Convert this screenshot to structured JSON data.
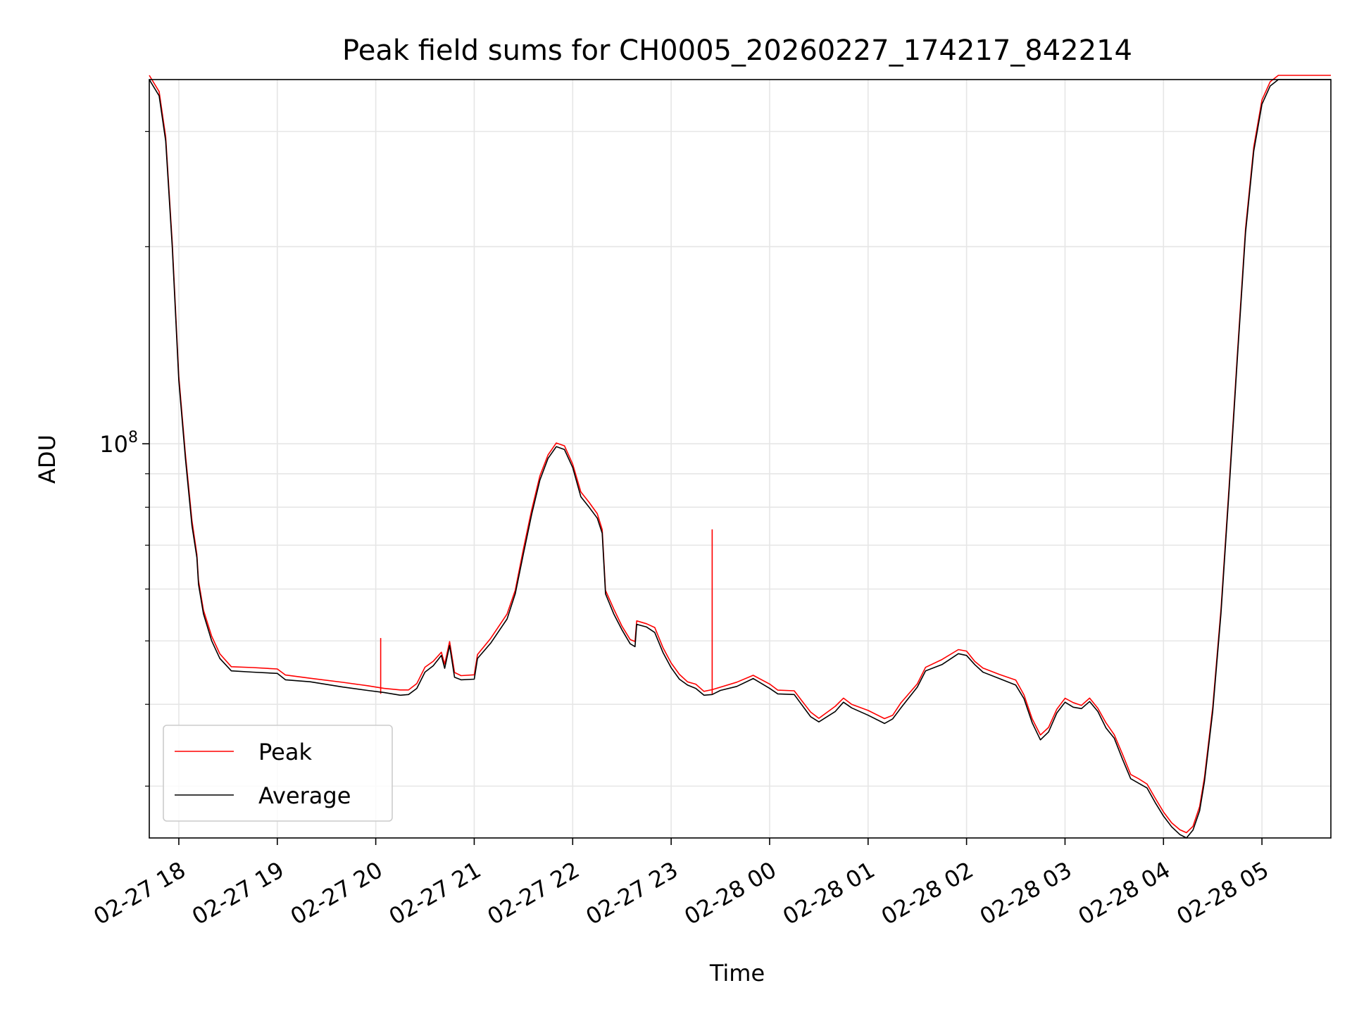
{
  "chart_data": {
    "type": "line",
    "title": "Peak field sums for CH0005_20260227_174217_842214",
    "xlabel": "Time",
    "ylabel": "ADU",
    "y_scale": "log",
    "grid": true,
    "grid_minor": true,
    "legend_position": "lower-left",
    "xlim": [
      "2026-02-27 17:42",
      "2026-02-28 05:42"
    ],
    "ylim": [
      25000000,
      360000000
    ],
    "x_tick_labels": [
      "02-27 18",
      "02-27 19",
      "02-27 20",
      "02-27 21",
      "02-27 22",
      "02-27 23",
      "02-28 00",
      "02-28 01",
      "02-28 02",
      "02-28 03",
      "02-28 04",
      "02-28 05"
    ],
    "x_ticks": [
      "2026-02-27 18:00",
      "2026-02-27 19:00",
      "2026-02-27 20:00",
      "2026-02-27 21:00",
      "2026-02-27 22:00",
      "2026-02-27 23:00",
      "2026-02-28 00:00",
      "2026-02-28 01:00",
      "2026-02-28 02:00",
      "2026-02-28 03:00",
      "2026-02-28 04:00",
      "2026-02-28 05:00"
    ],
    "y_major_tick": {
      "value": 100000000,
      "label_base": "10",
      "label_exp": "8"
    },
    "y_minor_ticks": [
      30000000,
      40000000,
      50000000,
      60000000,
      70000000,
      80000000,
      90000000,
      200000000,
      300000000
    ],
    "series": [
      {
        "name": "Peak",
        "color": "#ff0000",
        "spikes": [
          {
            "x": "2026-02-27 20:03",
            "y": 50500000
          },
          {
            "x": "2026-02-27 23:25",
            "y": 74000000
          }
        ]
      },
      {
        "name": "Average",
        "color": "#000000"
      }
    ],
    "average_points": [
      [
        "2026-02-27 17:42",
        360000000
      ],
      [
        "2026-02-27 17:48",
        340000000
      ],
      [
        "2026-02-27 17:52",
        290000000
      ],
      [
        "2026-02-27 17:56",
        200000000
      ],
      [
        "2026-02-27 18:00",
        125000000
      ],
      [
        "2026-02-27 18:04",
        95000000
      ],
      [
        "2026-02-27 18:08",
        75000000
      ],
      [
        "2026-02-27 18:11",
        67000000
      ],
      [
        "2026-02-27 18:12",
        61000000
      ],
      [
        "2026-02-27 18:15",
        55000000
      ],
      [
        "2026-02-27 18:20",
        50000000
      ],
      [
        "2026-02-27 18:25",
        47000000
      ],
      [
        "2026-02-27 18:32",
        45000000
      ],
      [
        "2026-02-27 18:45",
        44800000
      ],
      [
        "2026-02-27 19:00",
        44600000
      ],
      [
        "2026-02-27 19:05",
        43600000
      ],
      [
        "2026-02-27 19:20",
        43300000
      ],
      [
        "2026-02-27 19:40",
        42500000
      ],
      [
        "2026-02-27 19:55",
        42000000
      ],
      [
        "2026-02-27 20:05",
        41700000
      ],
      [
        "2026-02-27 20:15",
        41300000
      ],
      [
        "2026-02-27 20:20",
        41400000
      ],
      [
        "2026-02-27 20:25",
        42300000
      ],
      [
        "2026-02-27 20:30",
        44800000
      ],
      [
        "2026-02-27 20:35",
        45800000
      ],
      [
        "2026-02-27 20:40",
        47500000
      ],
      [
        "2026-02-27 20:42",
        45400000
      ],
      [
        "2026-02-27 20:45",
        49200000
      ],
      [
        "2026-02-27 20:48",
        44000000
      ],
      [
        "2026-02-27 20:52",
        43600000
      ],
      [
        "2026-02-27 21:00",
        43700000
      ],
      [
        "2026-02-27 21:02",
        47000000
      ],
      [
        "2026-02-27 21:10",
        49600000
      ],
      [
        "2026-02-27 21:20",
        54000000
      ],
      [
        "2026-02-27 21:25",
        59000000
      ],
      [
        "2026-02-27 21:30",
        68000000
      ],
      [
        "2026-02-27 21:35",
        78000000
      ],
      [
        "2026-02-27 21:40",
        88000000
      ],
      [
        "2026-02-27 21:45",
        95000000
      ],
      [
        "2026-02-27 21:50",
        99000000
      ],
      [
        "2026-02-27 21:55",
        98000000
      ],
      [
        "2026-02-27 22:00",
        92000000
      ],
      [
        "2026-02-27 22:05",
        83000000
      ],
      [
        "2026-02-27 22:10",
        80000000
      ],
      [
        "2026-02-27 22:15",
        77000000
      ],
      [
        "2026-02-27 22:18",
        73000000
      ],
      [
        "2026-02-27 22:20",
        59000000
      ],
      [
        "2026-02-27 22:25",
        55000000
      ],
      [
        "2026-02-27 22:30",
        52000000
      ],
      [
        "2026-02-27 22:35",
        49500000
      ],
      [
        "2026-02-27 22:38",
        49000000
      ],
      [
        "2026-02-27 22:39",
        53000000
      ],
      [
        "2026-02-27 22:45",
        52500000
      ],
      [
        "2026-02-27 22:50",
        51500000
      ],
      [
        "2026-02-27 22:55",
        48000000
      ],
      [
        "2026-02-27 23:00",
        45500000
      ],
      [
        "2026-02-27 23:05",
        43700000
      ],
      [
        "2026-02-27 23:10",
        42800000
      ],
      [
        "2026-02-27 23:15",
        42300000
      ],
      [
        "2026-02-27 23:20",
        41300000
      ],
      [
        "2026-02-27 23:25",
        41400000
      ],
      [
        "2026-02-27 23:30",
        42000000
      ],
      [
        "2026-02-27 23:40",
        42600000
      ],
      [
        "2026-02-27 23:50",
        43800000
      ],
      [
        "2026-02-28 00:00",
        42300000
      ],
      [
        "2026-02-28 00:05",
        41500000
      ],
      [
        "2026-02-28 00:15",
        41400000
      ],
      [
        "2026-02-28 00:20",
        39800000
      ],
      [
        "2026-02-28 00:25",
        38300000
      ],
      [
        "2026-02-28 00:30",
        37600000
      ],
      [
        "2026-02-28 00:40",
        39000000
      ],
      [
        "2026-02-28 00:45",
        40300000
      ],
      [
        "2026-02-28 00:50",
        39500000
      ],
      [
        "2026-02-28 01:00",
        38500000
      ],
      [
        "2026-02-28 01:10",
        37400000
      ],
      [
        "2026-02-28 01:15",
        38000000
      ],
      [
        "2026-02-28 01:20",
        39500000
      ],
      [
        "2026-02-28 01:30",
        42500000
      ],
      [
        "2026-02-28 01:35",
        45000000
      ],
      [
        "2026-02-28 01:45",
        46000000
      ],
      [
        "2026-02-28 01:55",
        47800000
      ],
      [
        "2026-02-28 02:00",
        47500000
      ],
      [
        "2026-02-28 02:05",
        46000000
      ],
      [
        "2026-02-28 02:10",
        44800000
      ],
      [
        "2026-02-28 02:20",
        43800000
      ],
      [
        "2026-02-28 02:30",
        42800000
      ],
      [
        "2026-02-28 02:35",
        40800000
      ],
      [
        "2026-02-28 02:40",
        37500000
      ],
      [
        "2026-02-28 02:45",
        35300000
      ],
      [
        "2026-02-28 02:50",
        36300000
      ],
      [
        "2026-02-28 02:55",
        38800000
      ],
      [
        "2026-02-28 03:00",
        40300000
      ],
      [
        "2026-02-28 03:05",
        39600000
      ],
      [
        "2026-02-28 03:10",
        39400000
      ],
      [
        "2026-02-28 03:15",
        40400000
      ],
      [
        "2026-02-28 03:20",
        39000000
      ],
      [
        "2026-02-28 03:25",
        36800000
      ],
      [
        "2026-02-28 03:30",
        35500000
      ],
      [
        "2026-02-28 03:35",
        33000000
      ],
      [
        "2026-02-28 03:40",
        30800000
      ],
      [
        "2026-02-28 03:45",
        30300000
      ],
      [
        "2026-02-28 03:50",
        29800000
      ],
      [
        "2026-02-28 03:55",
        28300000
      ],
      [
        "2026-02-28 04:00",
        27000000
      ],
      [
        "2026-02-28 04:05",
        26000000
      ],
      [
        "2026-02-28 04:10",
        25300000
      ],
      [
        "2026-02-28 04:14",
        25000000
      ],
      [
        "2026-02-28 04:18",
        25700000
      ],
      [
        "2026-02-28 04:22",
        27500000
      ],
      [
        "2026-02-28 04:25",
        30500000
      ],
      [
        "2026-02-28 04:30",
        39000000
      ],
      [
        "2026-02-28 04:35",
        55000000
      ],
      [
        "2026-02-28 04:40",
        85000000
      ],
      [
        "2026-02-28 04:45",
        135000000
      ],
      [
        "2026-02-28 04:50",
        210000000
      ],
      [
        "2026-02-28 04:55",
        280000000
      ],
      [
        "2026-02-28 05:00",
        330000000
      ],
      [
        "2026-02-28 05:05",
        352000000
      ],
      [
        "2026-02-28 05:10",
        360000000
      ],
      [
        "2026-02-28 05:42",
        360000000
      ]
    ],
    "peak_offset": 1.015
  },
  "legend": {
    "items": [
      {
        "label": "Peak",
        "color": "#ff0000"
      },
      {
        "label": "Average",
        "color": "#000000"
      }
    ]
  }
}
